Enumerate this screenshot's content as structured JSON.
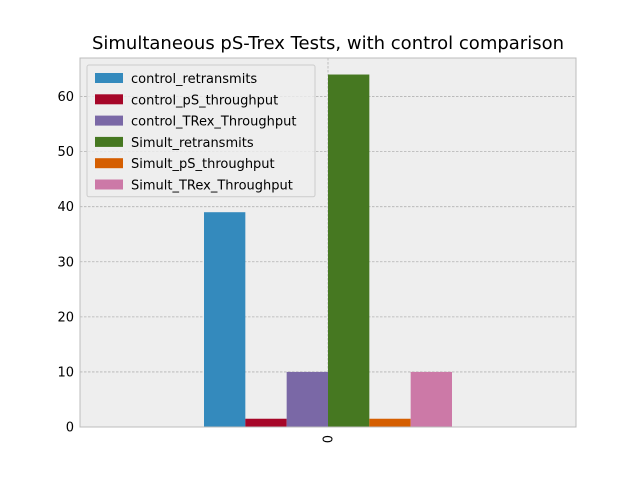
{
  "chart_data": {
    "type": "bar",
    "title": "Simultaneous pS-Trex Tests, with control comparison",
    "xlabel": "",
    "ylabel": "",
    "categories": [
      "0"
    ],
    "ylim": [
      0,
      67
    ],
    "yticks": [
      0,
      10,
      20,
      30,
      40,
      50,
      60
    ],
    "grid": true,
    "legend_position": "top-left",
    "series": [
      {
        "name": "control_retransmits",
        "values": [
          39
        ],
        "color": "#348ABD"
      },
      {
        "name": "control_pS_throughput",
        "values": [
          1.5
        ],
        "color": "#A60628"
      },
      {
        "name": "control_TRex_Throughput",
        "values": [
          10
        ],
        "color": "#7A68A6"
      },
      {
        "name": "Simult_retransmits",
        "values": [
          64
        ],
        "color": "#467821"
      },
      {
        "name": "Simult_pS_throughput",
        "values": [
          1.5
        ],
        "color": "#D55E00"
      },
      {
        "name": "Simult_TRex_Throughput",
        "values": [
          10
        ],
        "color": "#CC79A7"
      }
    ],
    "colors": {
      "plot_background": "#EEEEEE",
      "grid": "#B2B2B2",
      "axes_edge": "#BCBCBC"
    }
  }
}
